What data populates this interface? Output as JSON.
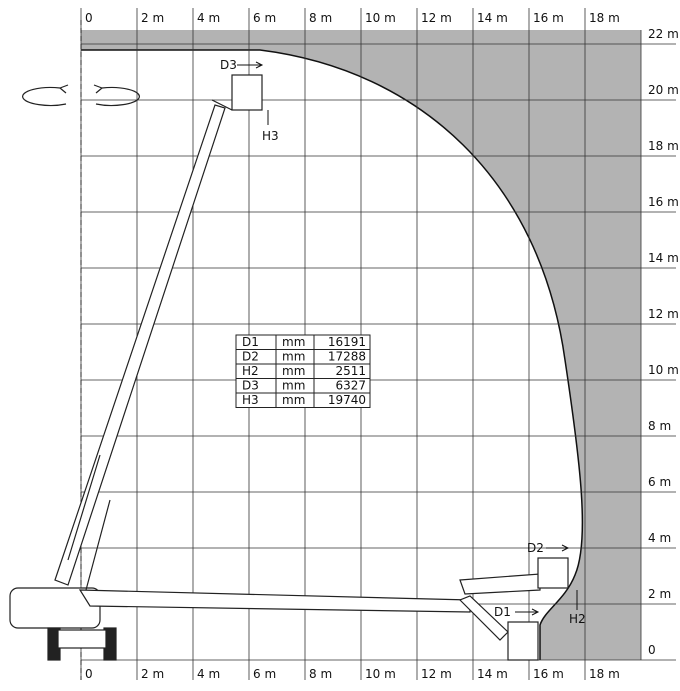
{
  "top_axis": [
    "0",
    "2 m",
    "4 m",
    "6 m",
    "8 m",
    "10 m",
    "12 m",
    "14 m",
    "16 m",
    "18 m"
  ],
  "bottom_axis": [
    "0",
    "2 m",
    "4 m",
    "6 m",
    "8 m",
    "10 m",
    "12 m",
    "14 m",
    "16 m",
    "18 m"
  ],
  "right_axis": [
    "22 m",
    "20 m",
    "18 m",
    "16 m",
    "14 m",
    "12 m",
    "10 m",
    "8 m",
    "6 m",
    "4 m",
    "2 m",
    "0"
  ],
  "table": {
    "rows": [
      [
        "D1",
        "mm",
        "16191"
      ],
      [
        "D2",
        "mm",
        "17288"
      ],
      [
        "H2",
        "mm",
        "2511"
      ],
      [
        "D3",
        "mm",
        "6327"
      ],
      [
        "H3",
        "mm",
        "19740"
      ]
    ]
  },
  "callouts": {
    "d3": "D3",
    "h3": "H3",
    "d2": "D2",
    "d1": "D1",
    "h2": "H2"
  }
}
